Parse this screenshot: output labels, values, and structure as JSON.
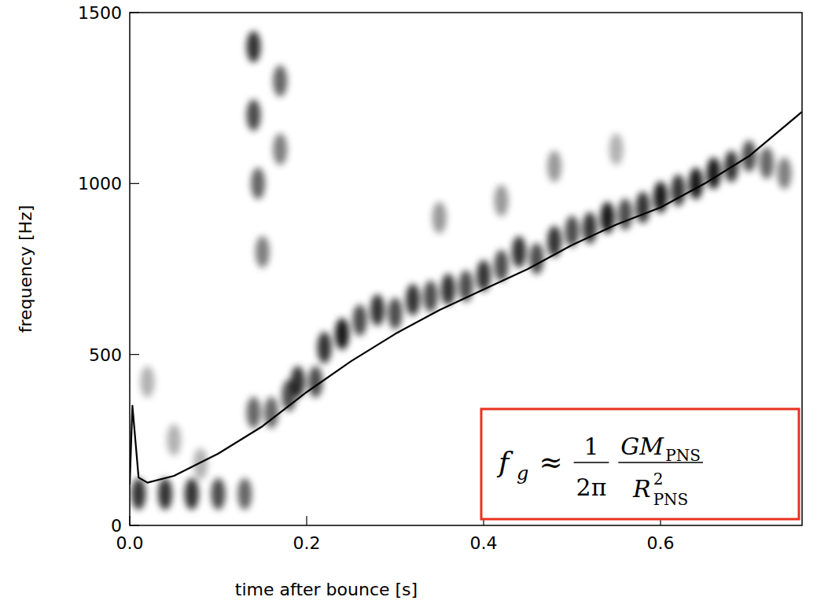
{
  "chart_data": {
    "type": "line",
    "x_label": "time after bounce [s]",
    "y_label": "frequency [Hz]",
    "xlim": [
      0,
      0.76
    ],
    "ylim": [
      0,
      1500
    ],
    "xticks": [
      {
        "value": 0,
        "label": "0.0"
      },
      {
        "value": 0.2,
        "label": "0.2"
      },
      {
        "value": 0.4,
        "label": "0.4"
      },
      {
        "value": 0.6,
        "label": "0.6"
      }
    ],
    "yticks": [
      0,
      500,
      1000,
      1500
    ],
    "x": [
      0,
      0.003,
      0.01,
      0.02,
      0.05,
      0.1,
      0.15,
      0.2,
      0.25,
      0.3,
      0.35,
      0.4,
      0.45,
      0.5,
      0.55,
      0.6,
      0.65,
      0.7,
      0.76
    ],
    "series": [
      {
        "color": "#000000",
        "values": [
          120,
          350,
          140,
          125,
          145,
          210,
          290,
          390,
          480,
          560,
          630,
          690,
          750,
          820,
          880,
          930,
          1000,
          1080,
          1210
        ]
      }
    ],
    "spectrogram": {
      "x": [
        0.22,
        0.24,
        0.26,
        0.28,
        0.3,
        0.32,
        0.34,
        0.36,
        0.38,
        0.4,
        0.42,
        0.44,
        0.46,
        0.48,
        0.5,
        0.52,
        0.54,
        0.56,
        0.58,
        0.6,
        0.62,
        0.64,
        0.66,
        0.68,
        0.7,
        0.72,
        0.74,
        0.18,
        0.19,
        0.21,
        0.16,
        0.14,
        0.14,
        0.14,
        0.145,
        0.17,
        0.17,
        0.15,
        0.35,
        0.42,
        0.48,
        0.55,
        0.02,
        0.05,
        0.08,
        0.01,
        0.04,
        0.07,
        0.1,
        0.13
      ],
      "y": [
        520,
        560,
        600,
        630,
        620,
        660,
        670,
        690,
        700,
        730,
        760,
        800,
        780,
        830,
        860,
        870,
        900,
        910,
        930,
        960,
        980,
        1000,
        1030,
        1050,
        1080,
        1060,
        1030,
        380,
        420,
        420,
        330,
        330,
        1400,
        1200,
        1000,
        1300,
        1100,
        800,
        900,
        950,
        1050,
        1100,
        420,
        250,
        180,
        92,
        92,
        92,
        92,
        92
      ],
      "intensity": [
        0.8,
        0.9,
        0.7,
        0.8,
        0.7,
        0.8,
        0.7,
        0.8,
        0.7,
        0.8,
        0.7,
        0.8,
        0.7,
        0.8,
        0.7,
        0.8,
        0.9,
        0.7,
        0.8,
        0.9,
        0.8,
        0.9,
        0.9,
        0.8,
        0.7,
        0.6,
        0.5,
        0.7,
        0.8,
        0.7,
        0.6,
        0.6,
        0.8,
        0.7,
        0.6,
        0.6,
        0.5,
        0.5,
        0.4,
        0.4,
        0.4,
        0.3,
        0.3,
        0.3,
        0.3,
        0.8,
        0.8,
        0.8,
        0.7,
        0.6
      ]
    },
    "annotation": {
      "lhs": "f",
      "lhs_sub": "g",
      "approx": "≈",
      "coef_num": "1",
      "coef_den": "2π",
      "numerator": "GM",
      "numerator_sub": "PNS",
      "denominator": "R",
      "denominator_sup": "2",
      "denominator_sub": "PNS"
    }
  }
}
